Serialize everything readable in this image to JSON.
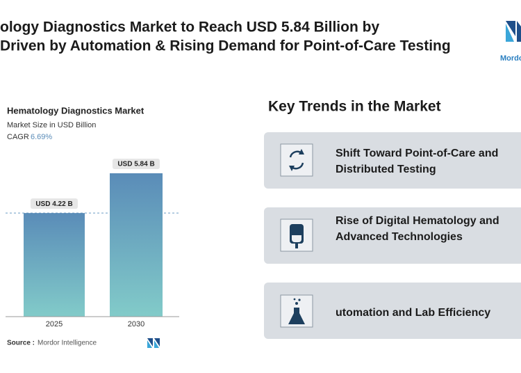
{
  "header": {
    "title_lines": [
      "ology Diagnostics Market to Reach USD 5.84 Billion by",
      "Driven by Automation & Rising Demand for Point-of-Care Testing"
    ],
    "logo": "Mordor"
  },
  "chart_data": {
    "type": "bar",
    "title": "Hematology Diagnostics Market",
    "subtitle": "Market Size in USD Billion",
    "cagr_label": "CAGR",
    "cagr_value": "6.69%",
    "categories": [
      "2025",
      "2030"
    ],
    "values": [
      4.22,
      5.84
    ],
    "value_labels": [
      "USD 4.22 B",
      "USD 5.84 B"
    ],
    "colors": [
      "#5a8cb8",
      "#82cbc9"
    ],
    "source_label": "Source :",
    "source": "Mordor Intelligence"
  },
  "trends": {
    "heading": "Key Trends in the Market",
    "items": [
      [
        "Shift Toward Point-of-Care and",
        "Distributed Testing"
      ],
      [
        "Rise of Digital Hematology and",
        "Advanced Technologies"
      ],
      [
        "utomation and Lab Efficiency"
      ]
    ]
  }
}
